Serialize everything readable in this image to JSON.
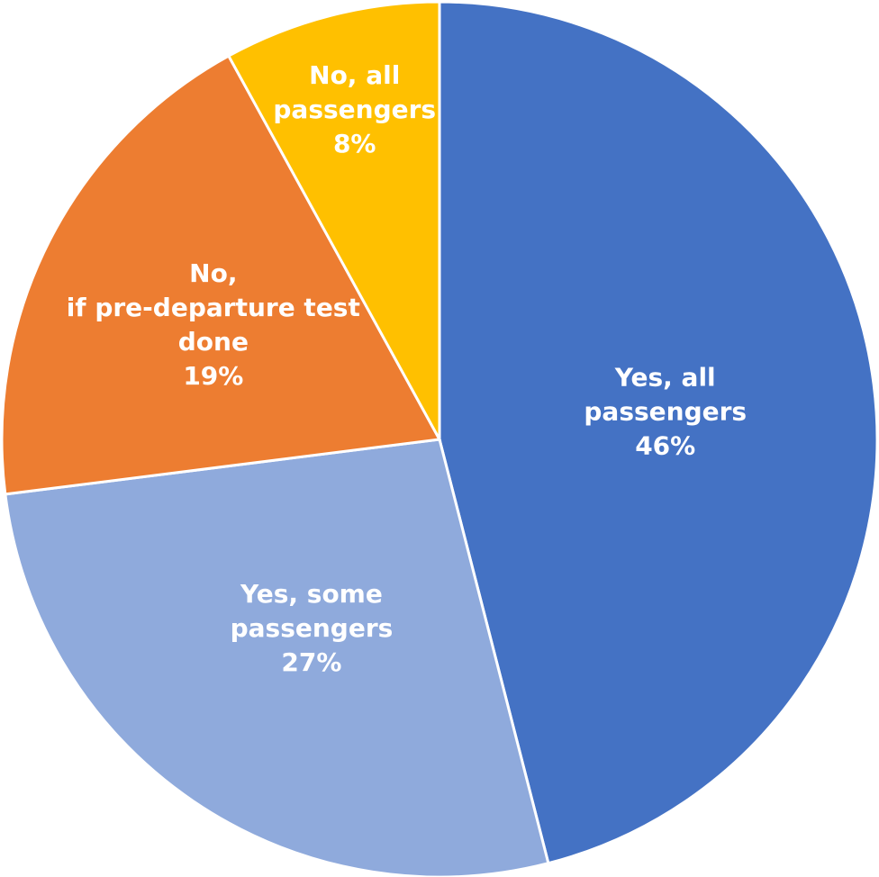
{
  "chart_data": {
    "type": "pie",
    "title": "",
    "slices": [
      {
        "label_lines": [
          "Yes, all",
          "passengers"
        ],
        "percent_label": "46%",
        "value": 46,
        "color": "#4472C4"
      },
      {
        "label_lines": [
          "Yes, some",
          "passengers"
        ],
        "percent_label": "27%",
        "value": 27,
        "color": "#8FAADC"
      },
      {
        "label_lines": [
          "No,",
          "if pre-departure test",
          "done"
        ],
        "percent_label": "19%",
        "value": 19,
        "color": "#ED7D31"
      },
      {
        "label_lines": [
          "No, all",
          "passengers"
        ],
        "percent_label": "8%",
        "value": 8,
        "color": "#FFC000"
      }
    ],
    "start_angle_deg": 0,
    "direction": "clockwise",
    "slice_border_color": "#ffffff",
    "label_color": "#ffffff"
  }
}
